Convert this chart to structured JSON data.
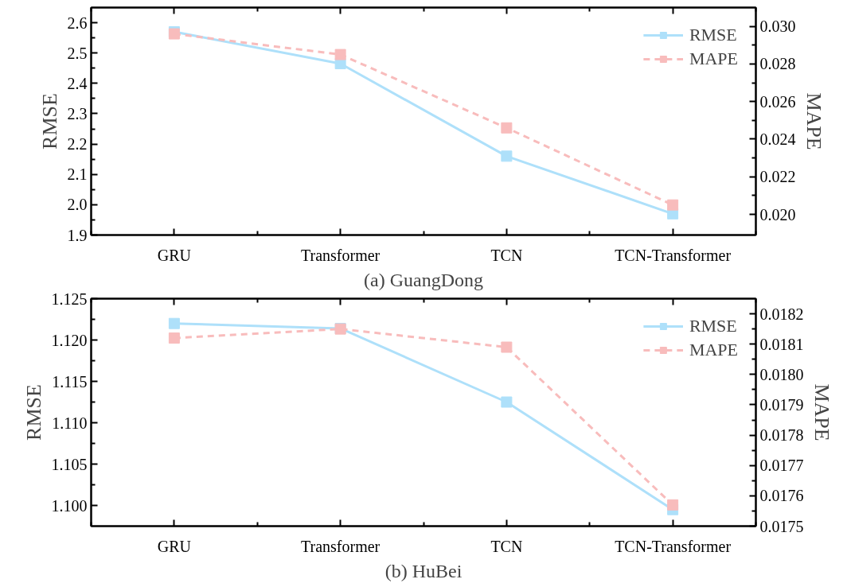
{
  "chart_data": [
    {
      "type": "line",
      "title": "(a) GuangDong",
      "categories": [
        "GRU",
        "Transformer",
        "TCN",
        "TCN-Transformer"
      ],
      "ylabel": "RMSE",
      "y2label": "MAPE",
      "ylim": [
        1.9,
        2.65
      ],
      "yticks": [
        1.9,
        {
          "value": 2.0,
          "label": "2.0"
        },
        2.1,
        2.2,
        2.3,
        2.4,
        2.5,
        2.6
      ],
      "y2lim": [
        0.0189,
        0.031
      ],
      "y2ticks": [
        {
          "value": 0.02,
          "label": "0.020"
        },
        {
          "value": 0.022,
          "label": "0.022"
        },
        {
          "value": 0.024,
          "label": "0.024"
        },
        {
          "value": 0.026,
          "label": "0.026"
        },
        {
          "value": 0.028,
          "label": "0.028"
        },
        {
          "value": 0.03,
          "label": "0.030"
        }
      ],
      "marker": "square",
      "grid": false,
      "legend": "top right",
      "series": [
        {
          "name": "RMSE",
          "color": "#aee0fa",
          "line_style": "solid",
          "values": [
            2.57,
            2.465,
            2.16,
            1.97
          ]
        },
        {
          "name": "MAPE",
          "color": "#f8bcbc",
          "line_style": "dashed",
          "axis": "y2",
          "values": [
            0.0296,
            0.0285,
            0.0246,
            0.0205
          ]
        }
      ]
    },
    {
      "type": "line",
      "title": "(b) HuBei",
      "categories": [
        "GRU",
        "Transformer",
        "TCN",
        "TCN-Transformer"
      ],
      "ylabel": "RMSE",
      "y2label": "MAPE",
      "ylim": [
        1.0975,
        1.125
      ],
      "yticks": [
        {
          "value": 1.1,
          "label": "1.100"
        },
        {
          "value": 1.105,
          "label": "1.105"
        },
        {
          "value": 1.11,
          "label": "1.110"
        },
        {
          "value": 1.115,
          "label": "1.115"
        },
        {
          "value": 1.12,
          "label": "1.120"
        },
        {
          "value": 1.125,
          "label": "1.125"
        }
      ],
      "y2lim": [
        0.0175,
        0.01825
      ],
      "y2ticks": [
        0.0175,
        0.0176,
        0.0177,
        0.0178,
        0.0179,
        {
          "value": 0.018,
          "label": "0.0180"
        },
        0.0181,
        0.0182
      ],
      "marker": "square",
      "grid": false,
      "legend": "top right",
      "series": [
        {
          "name": "RMSE",
          "color": "#aee0fa",
          "line_style": "solid",
          "values": [
            1.122,
            1.1214,
            1.1125,
            1.0995
          ]
        },
        {
          "name": "MAPE",
          "color": "#f8bcbc",
          "line_style": "dashed",
          "axis": "y2",
          "values": [
            0.01812,
            0.01815,
            0.01809,
            0.01757
          ]
        }
      ]
    }
  ]
}
